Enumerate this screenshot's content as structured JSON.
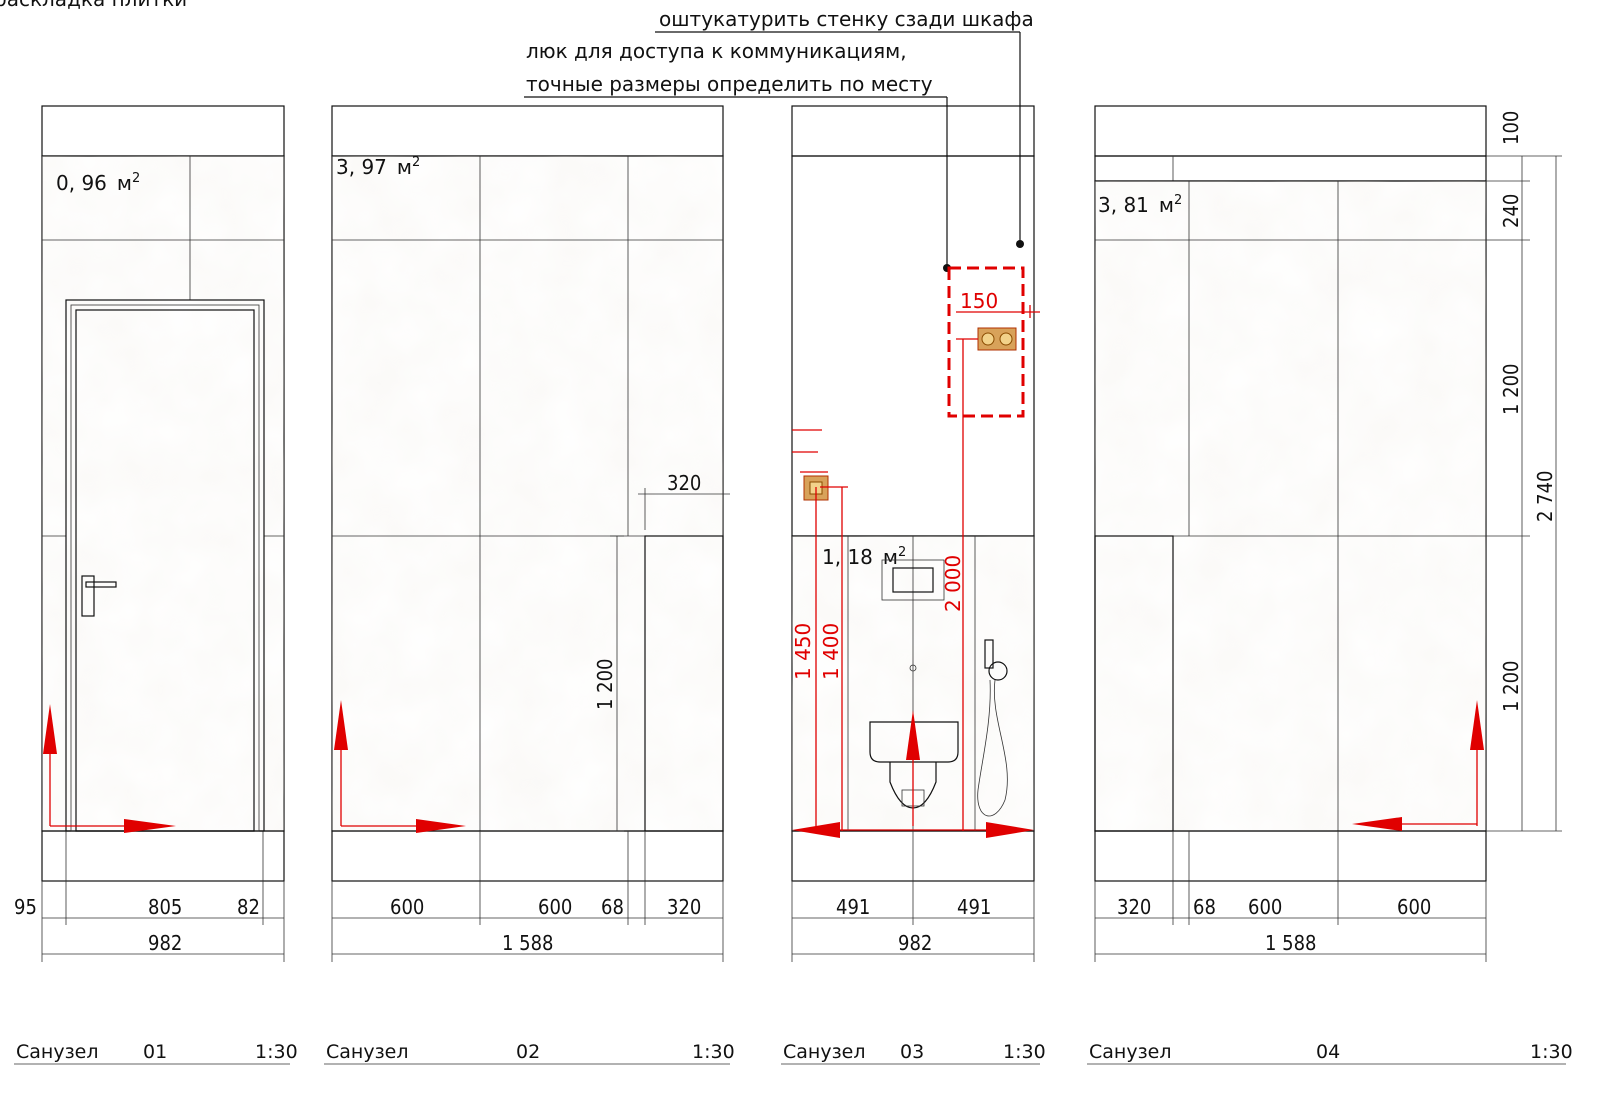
{
  "sheet": {
    "corner_label": "раскладка плитки"
  },
  "notes": {
    "plaster": "оштукатурить стенку сзади шкафа",
    "hatch_line1": "люк для доступа к коммуникациям,",
    "hatch_line2": "точные размеры определить по месту"
  },
  "elevations": [
    {
      "title": "Санузел",
      "number": "01",
      "scale": "1:30",
      "area_value": "0, 96",
      "area_unit": "м",
      "dims_bottom": [
        "95",
        "805",
        "82"
      ],
      "dim_total": "982"
    },
    {
      "title": "Санузел",
      "number": "02",
      "scale": "1:30",
      "area_value": "3, 97",
      "area_unit": "м",
      "dims_bottom": [
        "600",
        "600",
        "68",
        "320"
      ],
      "dim_total": "1 588",
      "dim_niche": "320",
      "dim_height": "1 200"
    },
    {
      "title": "Санузел",
      "number": "03",
      "scale": "1:30",
      "area_value": "1, 18",
      "area_unit": "м",
      "dims_bottom": [
        "491",
        "491"
      ],
      "dim_total": "982",
      "red_dims": [
        "150",
        "2 000",
        "1 450",
        "1 400"
      ]
    },
    {
      "title": "Санузел",
      "number": "04",
      "scale": "1:30",
      "area_value": "3, 81",
      "area_unit": "м",
      "dims_bottom": [
        "320",
        "68",
        "600",
        "600"
      ],
      "dim_total": "1 588",
      "dims_right": [
        "100",
        "240",
        "1 200",
        "1 200"
      ],
      "dim_right_total": "2 740"
    }
  ],
  "area_superscript": "2",
  "colors": {
    "tile": "#f2eee6",
    "door": "#b9b8b4",
    "marker": "#e00000",
    "socket": "#d8a25a"
  }
}
